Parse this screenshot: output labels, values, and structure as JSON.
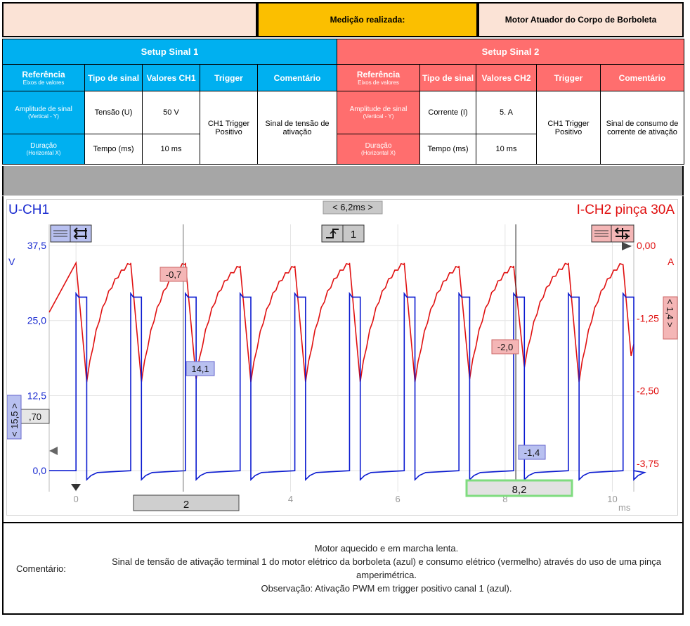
{
  "header": {
    "measurement_label": "Medição realizada:",
    "measurement_value": "Motor Atuador do Corpo de Borboleta"
  },
  "setup1": {
    "title": "Setup Sinal 1",
    "col_ref": "Referência",
    "col_ref_sub": "Eixos de valores",
    "col_tipo": "Tipo de sinal",
    "col_valores": "Valores CH1",
    "col_trigger": "Trigger",
    "col_comentario": "Comentário",
    "row1_label": "Amplitude de sinal",
    "row1_sub": "(Vertical - Y)",
    "row1_tipo": "Tensão (U)",
    "row1_valor": "50 V",
    "trigger": "CH1 Trigger Positivo",
    "comentario": "Sinal de tensão de ativação",
    "row2_label": "Duração",
    "row2_sub": "(Horizontal X)",
    "row2_tipo": "Tempo (ms)",
    "row2_valor": "10 ms"
  },
  "setup2": {
    "title": "Setup Sinal 2",
    "col_ref": "Referência",
    "col_ref_sub": "Eixos de valores",
    "col_tipo": "Tipo de sinal",
    "col_valores": "Valores CH2",
    "col_trigger": "Trigger",
    "col_comentario": "Comentário",
    "row1_label": "Amplitude de sinal",
    "row1_sub": "(Vertical - Y)",
    "row1_tipo": "Corrente (I)",
    "row1_valor": "5. A",
    "trigger": "CH1 Trigger Positivo",
    "comentario": "Sinal de consumo de corrente de ativação",
    "row2_label": "Duração",
    "row2_sub": "(Horizontal X)",
    "row2_tipo": "Tempo (ms)",
    "row2_valor": "10 ms"
  },
  "scope": {
    "ch1_label": "U-CH1",
    "ch2_label": "I-CH2 pinça 30A",
    "cursor_delta": "< 6,2ms >",
    "trigger_channel": "1",
    "left_unit": "V",
    "right_unit": "A",
    "left_ticks": [
      "37,5",
      "25,0",
      "12,5",
      "0,0"
    ],
    "right_ticks": [
      "0,00",
      "-1,25",
      "-2,50",
      "-3,75"
    ],
    "x_ticks": [
      "0",
      "2",
      "4",
      "6",
      "8",
      "10"
    ],
    "x_unit": "ms",
    "marker_a": "-0,7",
    "marker_b": "14,1",
    "marker_c": "-2,0",
    "marker_d": "-1,4",
    "marker_e": ",70",
    "scale_left": "< 15,5 >",
    "scale_right": "< 1,4 >",
    "cursor1_time": "2",
    "cursor2_time": "8,2",
    "colors": {
      "ch1": "#0a1ad0",
      "ch2": "#e01010"
    }
  },
  "chart_data": {
    "type": "line",
    "title": "",
    "xlabel": "ms",
    "ylabel_left": "V",
    "ylabel_right": "A",
    "xlim": [
      -0.5,
      10.4
    ],
    "ylim_left": [
      -7,
      37.5
    ],
    "ylim_right": [
      -4.6,
      0.0
    ],
    "series": [
      {
        "name": "U-CH1",
        "axis": "left",
        "pwm_rise_ms": [
          0.0,
          1.02,
          2.04,
          3.06,
          4.08,
          5.1,
          6.12,
          7.14,
          8.16,
          9.18,
          10.2
        ],
        "pulse_width_ms": 0.2,
        "high_v": 29.5,
        "low_v": 0.0,
        "undershoot_v": -1.5
      },
      {
        "name": "I-CH2 pinça 30A",
        "axis": "right",
        "peak_ms": [
          0.0,
          1.02,
          2.04,
          3.06,
          4.08,
          5.1,
          6.12,
          7.14,
          8.16,
          9.18,
          10.2
        ],
        "trough_ms": [
          0.2,
          1.22,
          2.24,
          3.26,
          4.28,
          5.3,
          6.32,
          7.34,
          8.36,
          9.38
        ],
        "peak_a": [
          -0.3,
          -0.3,
          -0.3,
          -0.35,
          -0.35,
          -0.3,
          -0.3,
          -0.35,
          -0.35,
          -0.3,
          -0.3
        ],
        "trough_a": [
          -2.35,
          -2.35,
          -2.3,
          -2.35,
          -2.35,
          -2.35,
          -2.35,
          -2.3,
          -2.1,
          -2.35
        ]
      }
    ]
  },
  "comment": {
    "label": "Comentário:",
    "line1": "Motor aquecido e em marcha lenta.",
    "line2": "Sinal de tensão de ativação terminal 1 do motor elétrico da borboleta (azul) e consumo elétrico (vermelho) através do uso de uma pinça amperimétrica.",
    "line3": "Observação: Ativação PWM em trigger positivo canal 1 (azul)."
  }
}
